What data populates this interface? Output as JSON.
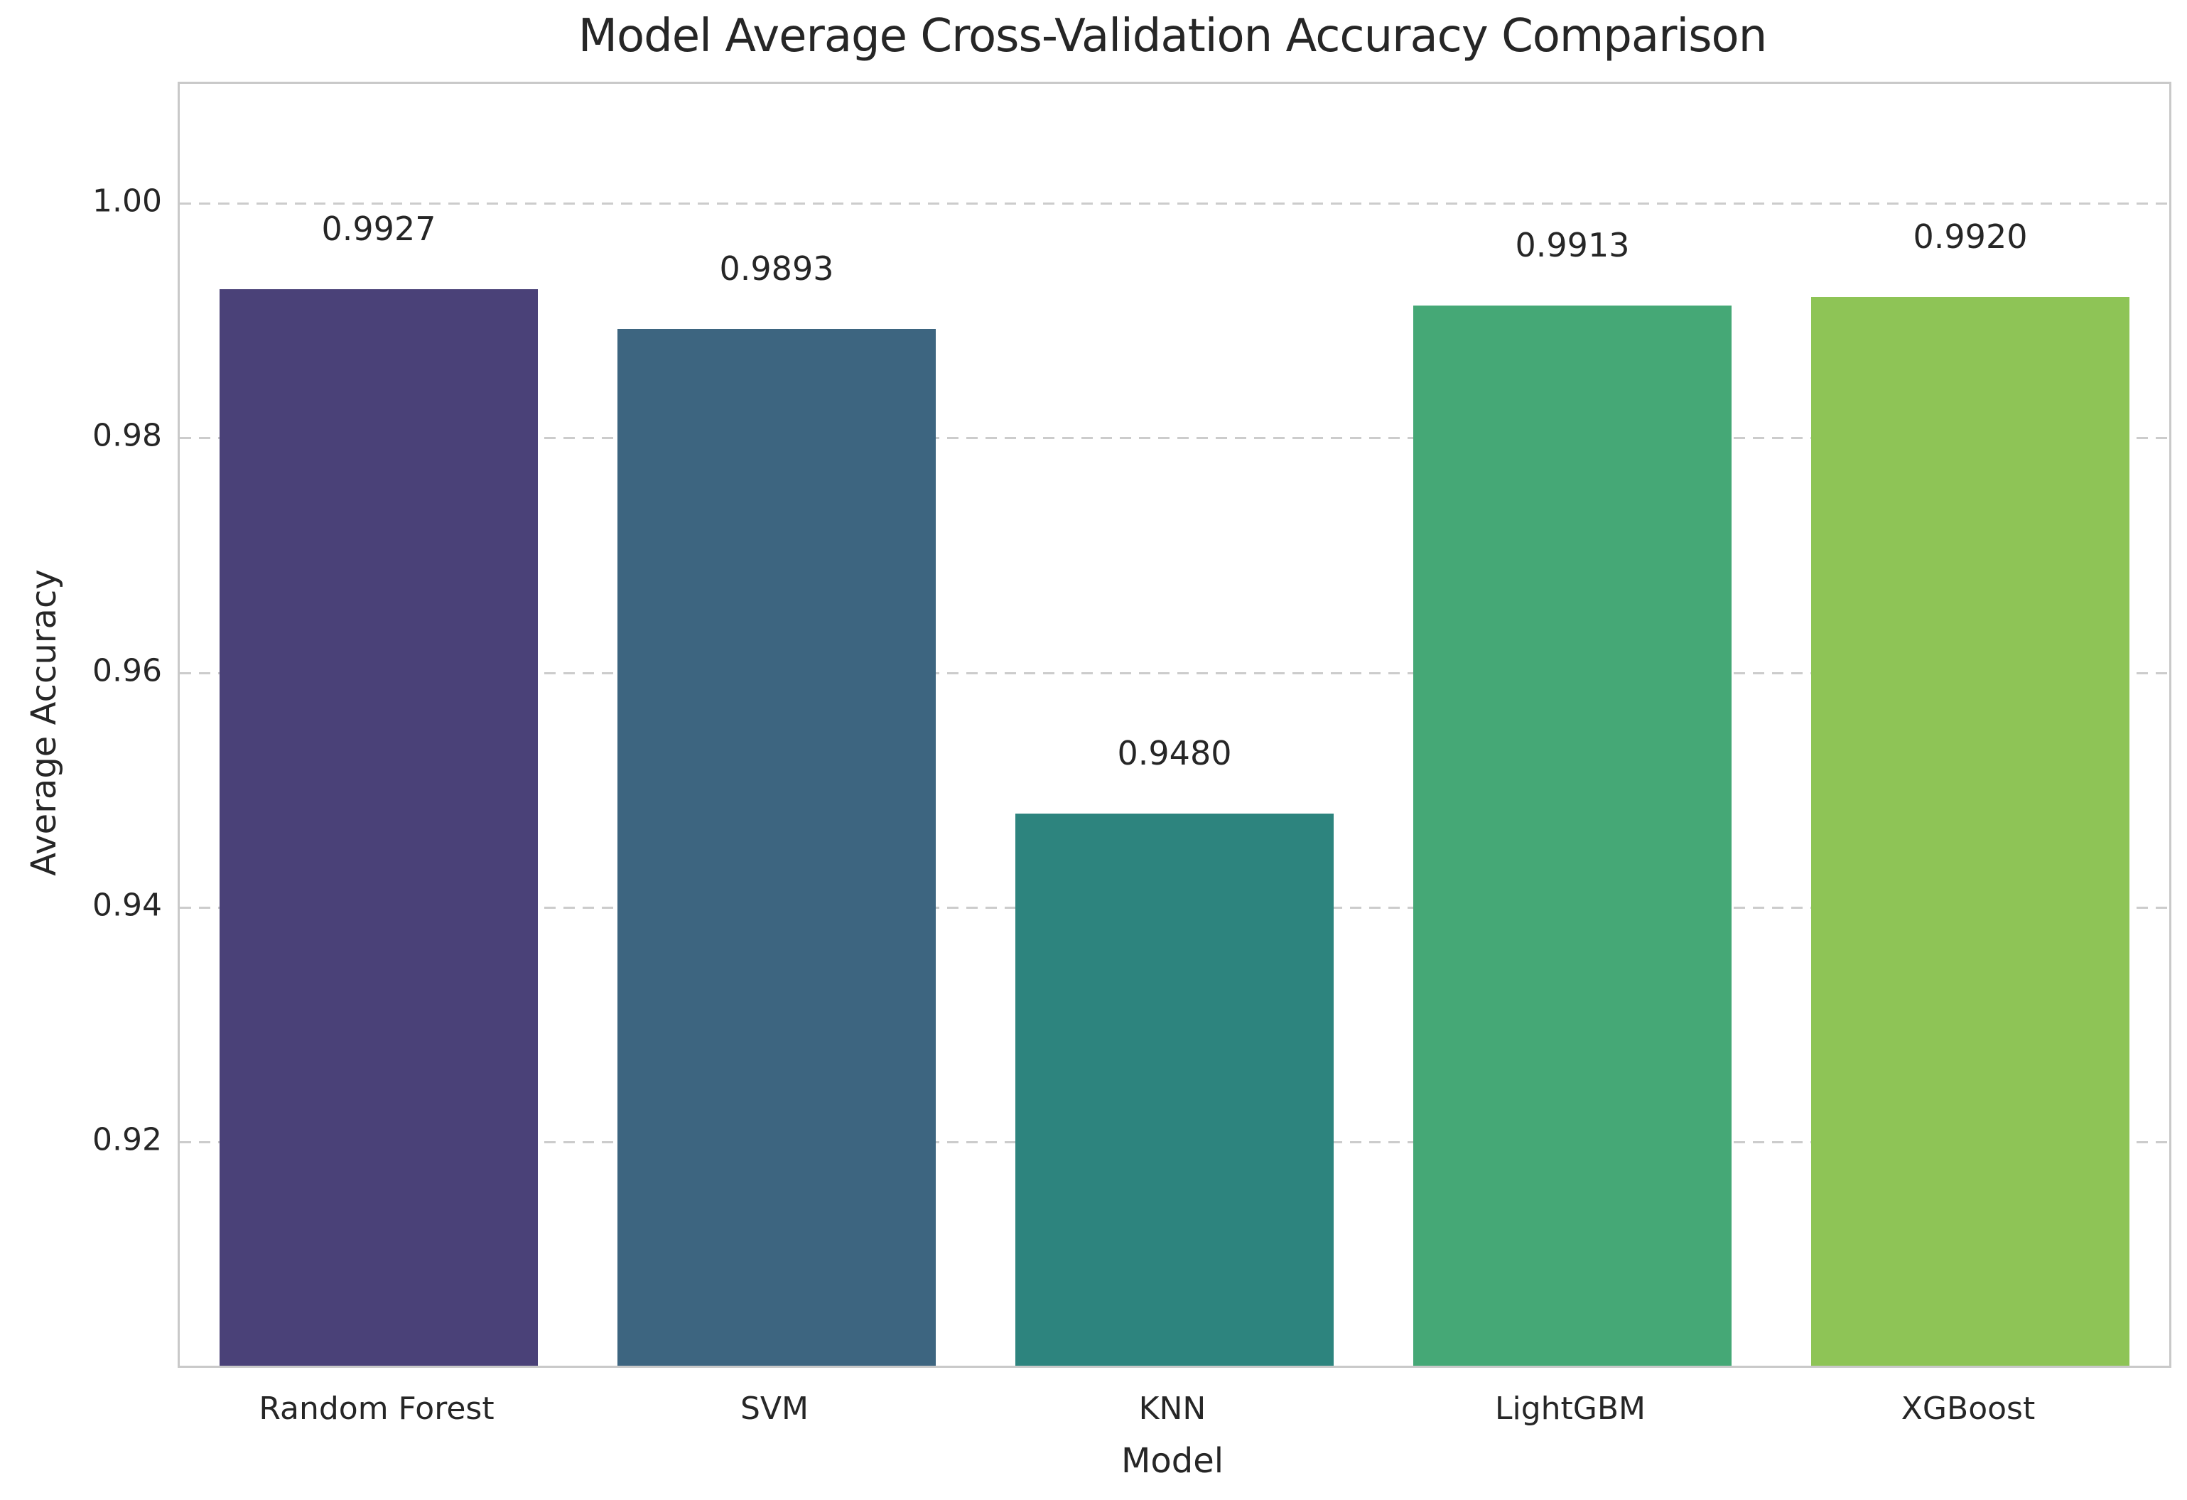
{
  "title": "Model Average Cross-Validation Accuracy Comparison",
  "chart_data": {
    "type": "bar",
    "title": "Model Average Cross-Validation Accuracy Comparison",
    "xlabel": "Model",
    "ylabel": "Average Accuracy",
    "categories": [
      "Random Forest",
      "SVM",
      "KNN",
      "LightGBM",
      "XGBoost"
    ],
    "values": [
      0.9927,
      0.9893,
      0.948,
      0.9913,
      0.992
    ],
    "value_labels": [
      "0.9927",
      "0.9893",
      "0.9480",
      "0.9913",
      "0.9920"
    ],
    "bar_colors": [
      "#4a4178",
      "#3d6580",
      "#2d847e",
      "#45a876",
      "#8ec456"
    ],
    "ylim": [
      0.9009,
      1.0102
    ],
    "yticks": [
      0.92,
      0.94,
      0.96,
      0.98,
      1.0
    ],
    "ytick_labels": [
      "0.92",
      "0.94",
      "0.96",
      "0.98",
      "1.00"
    ],
    "grid": "horizontal-dashed",
    "legend": "none"
  },
  "colors": {
    "background": "#ffffff",
    "grid": "#cccccc",
    "spine": "#c9c9c9",
    "text": "#262626"
  }
}
